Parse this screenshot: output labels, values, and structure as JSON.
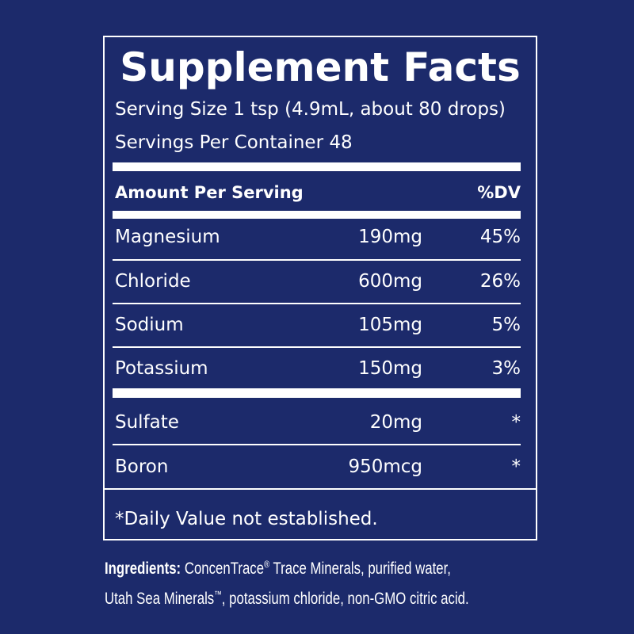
{
  "title": "Supplement Facts",
  "serving_size": "Serving Size 1 tsp (4.9mL, about 80 drops)",
  "servings_per_container": "Servings Per Container 48",
  "header": {
    "amount": "Amount Per Serving",
    "dv": "%DV"
  },
  "rows": [
    [
      "Magnesium",
      "190mg",
      "45%"
    ],
    [
      "Chloride",
      "600mg",
      "26%"
    ],
    [
      "Sodium",
      "105mg",
      "5%"
    ],
    [
      "Potassium",
      "150mg",
      "3%"
    ]
  ],
  "other_rows": [
    [
      "Sulfate",
      "20mg",
      "*"
    ],
    [
      "Boron",
      "950mcg",
      "*"
    ]
  ],
  "footnote": "*Daily Value not established.",
  "ingredients": {
    "label": "Ingredients:",
    "part1": "ConcenTrace",
    "mark1": "®",
    "part2": "Trace Minerals, purified water,",
    "part3": "Utah Sea Minerals",
    "mark2": "™",
    "part4": ", potassium chloride, non-GMO citric acid."
  }
}
